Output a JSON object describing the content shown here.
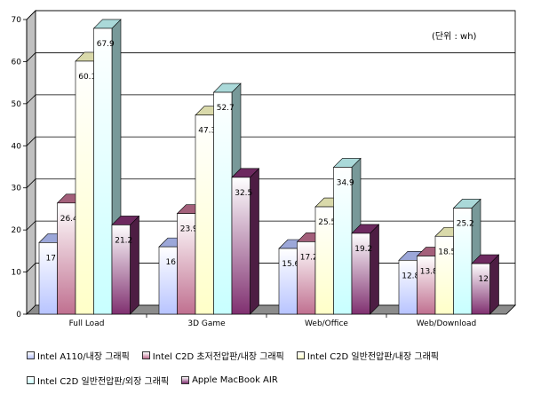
{
  "chart_data": {
    "type": "bar",
    "unit_note": "(단위 : wh)",
    "categories": [
      "Full Load",
      "3D Game",
      "Web/Office",
      "Web/Download"
    ],
    "series": [
      {
        "name": "Intel A110/내장 그래픽",
        "values": [
          17,
          16,
          15.6,
          12.8
        ],
        "labels": [
          "17",
          "16",
          "15.6",
          "12.8"
        ],
        "color": "#b8c4ff"
      },
      {
        "name": "Intel C2D 초저전압판/내장 그래픽",
        "values": [
          26.4,
          23.9,
          17.2,
          13.8
        ],
        "labels": [
          "26.4",
          "23.9",
          "17.2",
          "13.8"
        ],
        "color": "#c07090"
      },
      {
        "name": "Intel C2D 일반전압판/내장 그래픽",
        "values": [
          60.1,
          47.3,
          25.5,
          18.5
        ],
        "labels": [
          "60.1",
          "47.3",
          "25.5",
          "18.5"
        ],
        "color": "#ffffc8"
      },
      {
        "name": "Intel C2D 일반전압판/외장 그래픽",
        "values": [
          67.9,
          52.7,
          34.9,
          25.2
        ],
        "labels": [
          "67.9",
          "52.7",
          "34.9",
          "25.2"
        ],
        "color": "#c8ffff"
      },
      {
        "name": "Apple MacBook AIR",
        "values": [
          21.2,
          32.5,
          19.2,
          12
        ],
        "labels": [
          "21.2",
          "32.5",
          "19.2",
          "12"
        ],
        "color": "#803070"
      }
    ],
    "yticks": [
      "0",
      "10",
      "20",
      "30",
      "40",
      "50",
      "60",
      "70"
    ],
    "ylim": [
      0,
      70
    ],
    "grid": true,
    "legend_position": "bottom"
  },
  "colors": {
    "plot_back": "#ffffff",
    "floor": "#8c8c8c",
    "wall_side": "#c0c0c0",
    "grid": "#000000"
  }
}
